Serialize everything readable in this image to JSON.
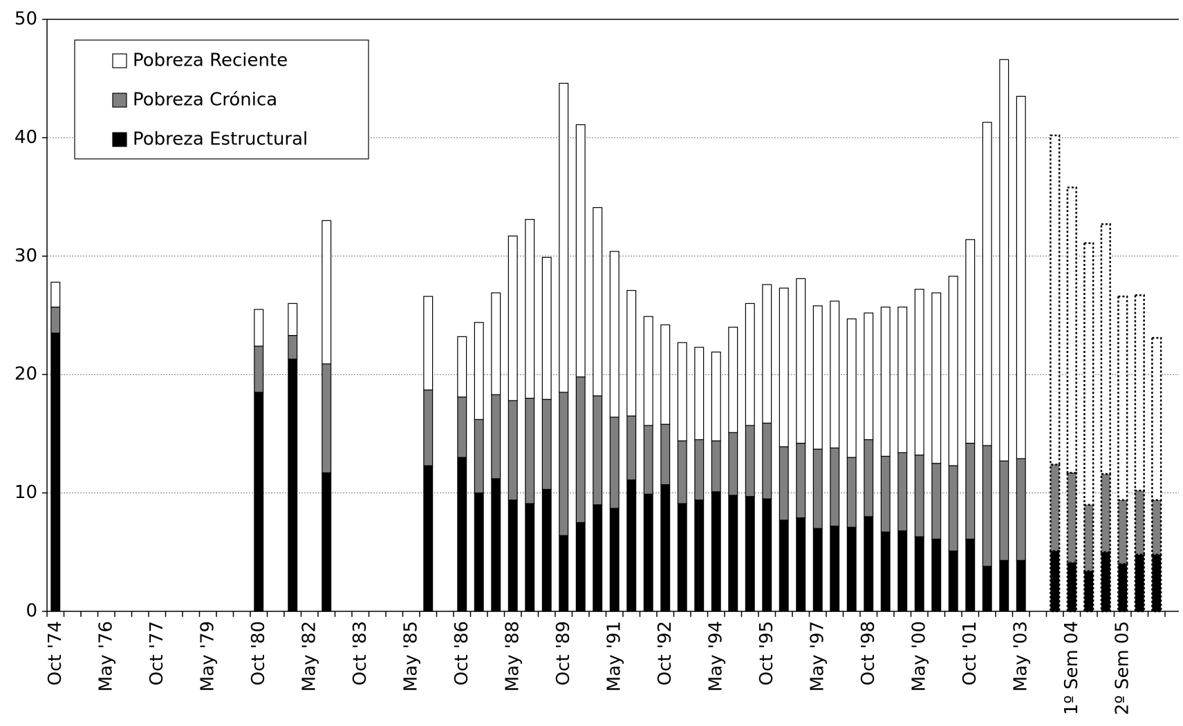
{
  "chart_data": {
    "type": "stacked_bar",
    "categories": [
      "Oct '74",
      null,
      null,
      "May '76",
      null,
      null,
      "Oct '77",
      null,
      null,
      "May '79",
      null,
      null,
      "Oct '80",
      null,
      null,
      "May '82",
      null,
      null,
      "Oct '83",
      null,
      null,
      "May '85",
      null,
      null,
      "Oct '86",
      null,
      null,
      "May '88",
      null,
      null,
      "Oct '89",
      null,
      null,
      "May '91",
      null,
      null,
      "Oct '92",
      null,
      null,
      "May '94",
      null,
      null,
      "Oct '95",
      null,
      null,
      "May '97",
      null,
      null,
      "Oct '98",
      null,
      null,
      "May '00",
      null,
      null,
      "Oct '01",
      null,
      null,
      "May '03",
      null,
      null,
      "1º Sem 04",
      null,
      null,
      "2º Sem 05",
      null,
      null
    ],
    "series": [
      {
        "name": "Pobreza Estructural",
        "color": "#000000",
        "values": [
          23.5,
          null,
          null,
          null,
          null,
          null,
          null,
          null,
          null,
          null,
          null,
          null,
          18.5,
          null,
          21.3,
          null,
          11.7,
          null,
          null,
          null,
          null,
          null,
          12.3,
          null,
          13.0,
          10.0,
          11.2,
          9.4,
          9.1,
          10.3,
          6.4,
          7.5,
          9.0,
          8.7,
          11.1,
          9.9,
          10.7,
          9.1,
          9.4,
          10.1,
          9.8,
          9.7,
          9.5,
          7.7,
          7.9,
          7.0,
          7.2,
          7.1,
          8.0,
          6.7,
          6.8,
          6.3,
          6.1,
          5.1,
          6.1,
          3.8,
          4.3,
          4.3,
          null,
          5.1,
          4.1,
          3.4,
          5.0,
          4.0,
          4.8,
          4.8
        ]
      },
      {
        "name": "Pobreza Crónica",
        "color": "#808080",
        "values": [
          2.2,
          null,
          null,
          null,
          null,
          null,
          null,
          null,
          null,
          null,
          null,
          null,
          3.9,
          null,
          2.0,
          null,
          9.2,
          null,
          null,
          null,
          null,
          null,
          6.4,
          null,
          5.1,
          6.2,
          7.1,
          8.4,
          8.9,
          7.6,
          12.1,
          12.3,
          9.2,
          7.7,
          5.4,
          5.8,
          5.1,
          5.3,
          5.1,
          4.3,
          5.3,
          6.0,
          6.4,
          6.2,
          6.3,
          6.7,
          6.6,
          5.9,
          6.5,
          6.4,
          6.6,
          6.9,
          6.4,
          7.2,
          8.1,
          10.2,
          8.4,
          8.6,
          null,
          7.3,
          7.6,
          5.6,
          6.6,
          5.4,
          5.4,
          4.6
        ]
      },
      {
        "name": "Pobreza Reciente",
        "color": "#ffffff",
        "values": [
          2.1,
          null,
          null,
          null,
          null,
          null,
          null,
          null,
          null,
          null,
          null,
          null,
          3.1,
          null,
          2.7,
          null,
          12.1,
          null,
          null,
          null,
          null,
          null,
          7.9,
          null,
          5.1,
          8.2,
          8.6,
          13.9,
          15.1,
          12.0,
          26.1,
          21.3,
          15.9,
          14.0,
          10.6,
          9.2,
          8.4,
          8.3,
          7.8,
          7.5,
          8.9,
          10.3,
          11.7,
          13.4,
          13.9,
          12.1,
          12.4,
          11.7,
          10.7,
          12.6,
          12.3,
          14.0,
          14.4,
          16.0,
          17.2,
          27.3,
          33.9,
          30.6,
          null,
          27.8,
          24.1,
          22.1,
          21.1,
          17.2,
          16.5,
          13.7
        ]
      }
    ],
    "dashed_from": 59,
    "ylim": [
      0,
      50
    ],
    "yticks": [
      0,
      10,
      20,
      30,
      40,
      50
    ],
    "grid": true,
    "legend": "top-left"
  }
}
